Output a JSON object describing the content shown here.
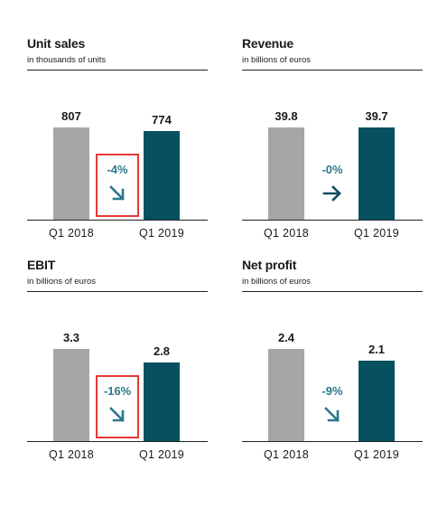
{
  "chart_data": [
    {
      "type": "bar",
      "title": "Unit sales",
      "subtitle": "in thousands of units",
      "categories": [
        "Q1 2018",
        "Q1 2019"
      ],
      "values": [
        807,
        774
      ],
      "value_labels": [
        "807",
        "774"
      ],
      "change_label": "-4%",
      "change_direction": "down",
      "highlighted": true,
      "ylim": [
        0,
        807
      ]
    },
    {
      "type": "bar",
      "title": "Revenue",
      "subtitle": "in billions of euros",
      "categories": [
        "Q1 2018",
        "Q1 2019"
      ],
      "values": [
        39.8,
        39.7
      ],
      "value_labels": [
        "39.8",
        "39.7"
      ],
      "change_label": "-0%",
      "change_direction": "flat",
      "highlighted": false,
      "ylim": [
        0,
        39.8
      ]
    },
    {
      "type": "bar",
      "title": "EBIT",
      "subtitle": "in billions of euros",
      "categories": [
        "Q1 2018",
        "Q1 2019"
      ],
      "values": [
        3.3,
        2.8
      ],
      "value_labels": [
        "3.3",
        "2.8"
      ],
      "change_label": "-16%",
      "change_direction": "down",
      "highlighted": true,
      "ylim": [
        0,
        3.3
      ]
    },
    {
      "type": "bar",
      "title": "Net profit",
      "subtitle": "in billions of euros",
      "categories": [
        "Q1 2018",
        "Q1 2019"
      ],
      "values": [
        2.4,
        2.1
      ],
      "value_labels": [
        "2.4",
        "2.1"
      ],
      "change_label": "-9%",
      "change_direction": "down",
      "highlighted": false,
      "ylim": [
        0,
        2.4
      ]
    }
  ],
  "colors": {
    "bar_2018": "#a6a6a6",
    "bar_2019": "#06505f",
    "change_text": "#2a7a8a",
    "highlight_box": "#e53935"
  },
  "icons": {
    "down": "arrow-down-right-icon",
    "flat": "arrow-right-icon"
  }
}
